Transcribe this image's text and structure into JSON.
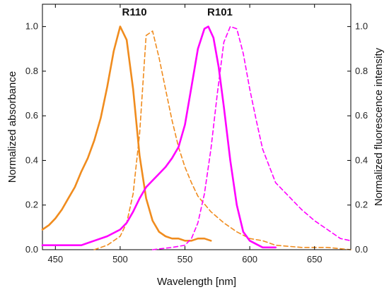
{
  "chart_data": {
    "type": "line",
    "xlabel": "Wavelength [nm]",
    "ylabel_left": "Normalized absorbance",
    "ylabel_right": "Normalized fluorescence intensity",
    "xlim": [
      440,
      678
    ],
    "ylim": [
      0,
      1.1
    ],
    "x_ticks": [
      450,
      500,
      550,
      600,
      650
    ],
    "y_ticks": [
      0.0,
      0.2,
      0.4,
      0.6,
      0.8,
      1.0
    ],
    "y_tick_labels": [
      "0.0",
      "0.2",
      "0.4",
      "0.6",
      "0.8",
      "1.0"
    ],
    "grid": false,
    "annotations": [
      {
        "text": "R110",
        "x": 511,
        "y": 1.05
      },
      {
        "text": "R101",
        "x": 577,
        "y": 1.05
      }
    ],
    "series": [
      {
        "color": "#f08c1e",
        "dash": false,
        "x": [
          440,
          445,
          450,
          455,
          460,
          465,
          470,
          475,
          480,
          485,
          490,
          495,
          500,
          505,
          510,
          515,
          520,
          525,
          530,
          535,
          540,
          545,
          550,
          555,
          560,
          565,
          570
        ],
        "y": [
          0.09,
          0.11,
          0.14,
          0.18,
          0.23,
          0.28,
          0.35,
          0.41,
          0.49,
          0.59,
          0.73,
          0.89,
          1.0,
          0.94,
          0.72,
          0.42,
          0.23,
          0.13,
          0.08,
          0.06,
          0.05,
          0.05,
          0.04,
          0.04,
          0.05,
          0.05,
          0.04
        ]
      },
      {
        "color": "#f08c1e",
        "dash": true,
        "x": [
          480,
          490,
          500,
          505,
          510,
          515,
          520,
          525,
          530,
          535,
          540,
          545,
          550,
          555,
          560,
          570,
          580,
          590,
          600,
          610,
          620,
          640,
          660,
          678
        ],
        "y": [
          0.0,
          0.02,
          0.06,
          0.12,
          0.25,
          0.52,
          0.96,
          0.98,
          0.86,
          0.72,
          0.58,
          0.46,
          0.37,
          0.3,
          0.24,
          0.17,
          0.12,
          0.08,
          0.05,
          0.04,
          0.02,
          0.01,
          0.01,
          0.0
        ]
      },
      {
        "color": "#ff00ff",
        "dash": false,
        "x": [
          440,
          450,
          460,
          470,
          480,
          490,
          500,
          505,
          510,
          515,
          520,
          525,
          530,
          535,
          540,
          545,
          550,
          555,
          560,
          565,
          568,
          572,
          576,
          580,
          585,
          590,
          595,
          600,
          610,
          620
        ],
        "y": [
          0.02,
          0.02,
          0.02,
          0.02,
          0.04,
          0.06,
          0.09,
          0.12,
          0.17,
          0.23,
          0.28,
          0.31,
          0.34,
          0.37,
          0.41,
          0.46,
          0.56,
          0.73,
          0.9,
          0.99,
          1.0,
          0.95,
          0.82,
          0.64,
          0.4,
          0.2,
          0.08,
          0.04,
          0.01,
          0.01
        ]
      },
      {
        "color": "#ff00ff",
        "dash": true,
        "x": [
          525,
          540,
          550,
          555,
          560,
          565,
          570,
          575,
          580,
          585,
          590,
          595,
          600,
          605,
          610,
          620,
          630,
          640,
          650,
          660,
          670,
          678
        ],
        "y": [
          0.0,
          0.01,
          0.02,
          0.05,
          0.12,
          0.25,
          0.45,
          0.7,
          0.93,
          1.0,
          0.99,
          0.88,
          0.72,
          0.58,
          0.45,
          0.3,
          0.24,
          0.18,
          0.13,
          0.09,
          0.05,
          0.04
        ]
      }
    ]
  }
}
